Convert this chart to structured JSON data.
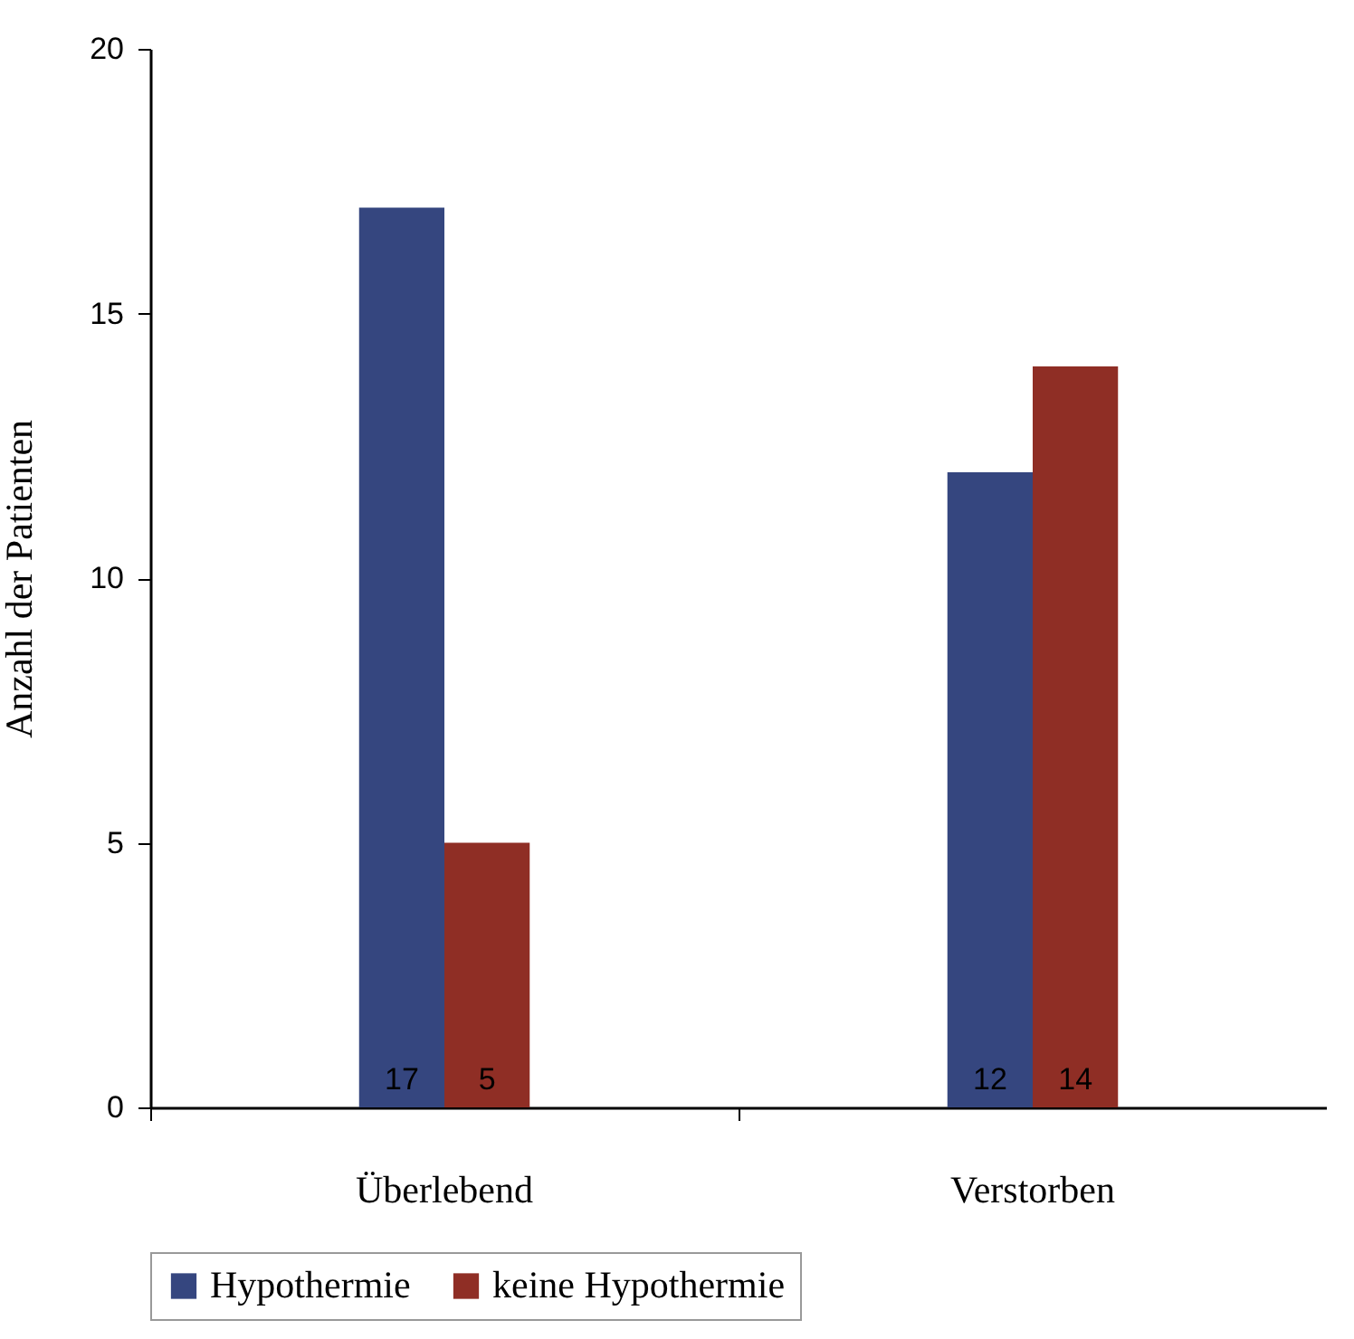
{
  "chart_data": {
    "type": "bar",
    "ylabel": "Anzahl der Patienten",
    "categories": [
      "Überlebend",
      "Verstorben"
    ],
    "series": [
      {
        "name": "Hypothermie",
        "color": "#35467f",
        "values": [
          17,
          12
        ]
      },
      {
        "name": "keine Hypothermie",
        "color": "#8f2e25",
        "values": [
          5,
          14
        ]
      }
    ],
    "ylim": [
      0,
      20
    ],
    "yticks": [
      0,
      5,
      10,
      15,
      20
    ],
    "grid": false,
    "legend": "bottom",
    "data_labels": true
  }
}
